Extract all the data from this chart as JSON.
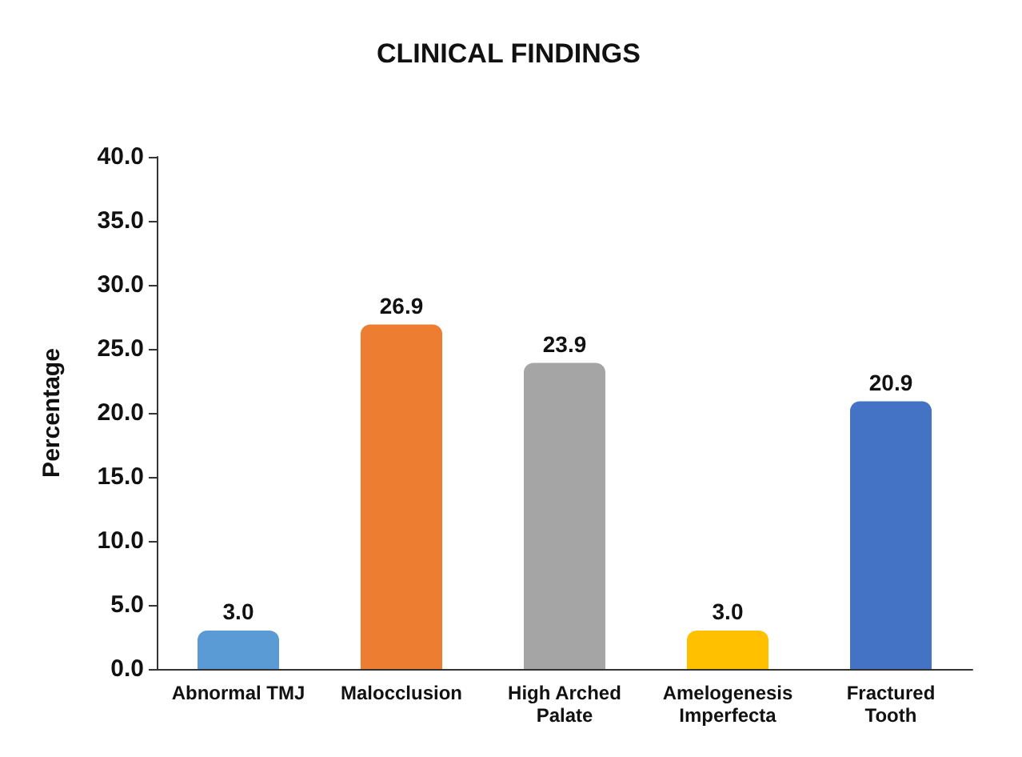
{
  "chart_data": {
    "type": "bar",
    "title": "CLINICAL FINDINGS",
    "ylabel": "Percentage",
    "categories": [
      "Abnormal TMJ",
      "Malocclusion",
      "High Arched\nPalate",
      "Amelogenesis\nImperfecta",
      "Fractured\nTooth"
    ],
    "values": [
      3.0,
      26.9,
      23.9,
      3.0,
      20.9
    ],
    "value_labels": [
      "3.0",
      "26.9",
      "23.9",
      "3.0",
      "20.9"
    ],
    "colors": [
      "#5b9bd5",
      "#ed7d31",
      "#a5a5a5",
      "#ffc000",
      "#4472c4"
    ],
    "ylim": [
      0,
      40
    ],
    "yticks": [
      {
        "value": 0,
        "label": "0.0"
      },
      {
        "value": 5,
        "label": "5.0"
      },
      {
        "value": 10,
        "label": "10.0"
      },
      {
        "value": 15,
        "label": "15.0"
      },
      {
        "value": 20,
        "label": "20.0"
      },
      {
        "value": 25,
        "label": "25.0"
      },
      {
        "value": 30,
        "label": "30.0"
      },
      {
        "value": 35,
        "label": "35.0"
      },
      {
        "value": 40,
        "label": "40.0"
      }
    ],
    "grid": false
  }
}
